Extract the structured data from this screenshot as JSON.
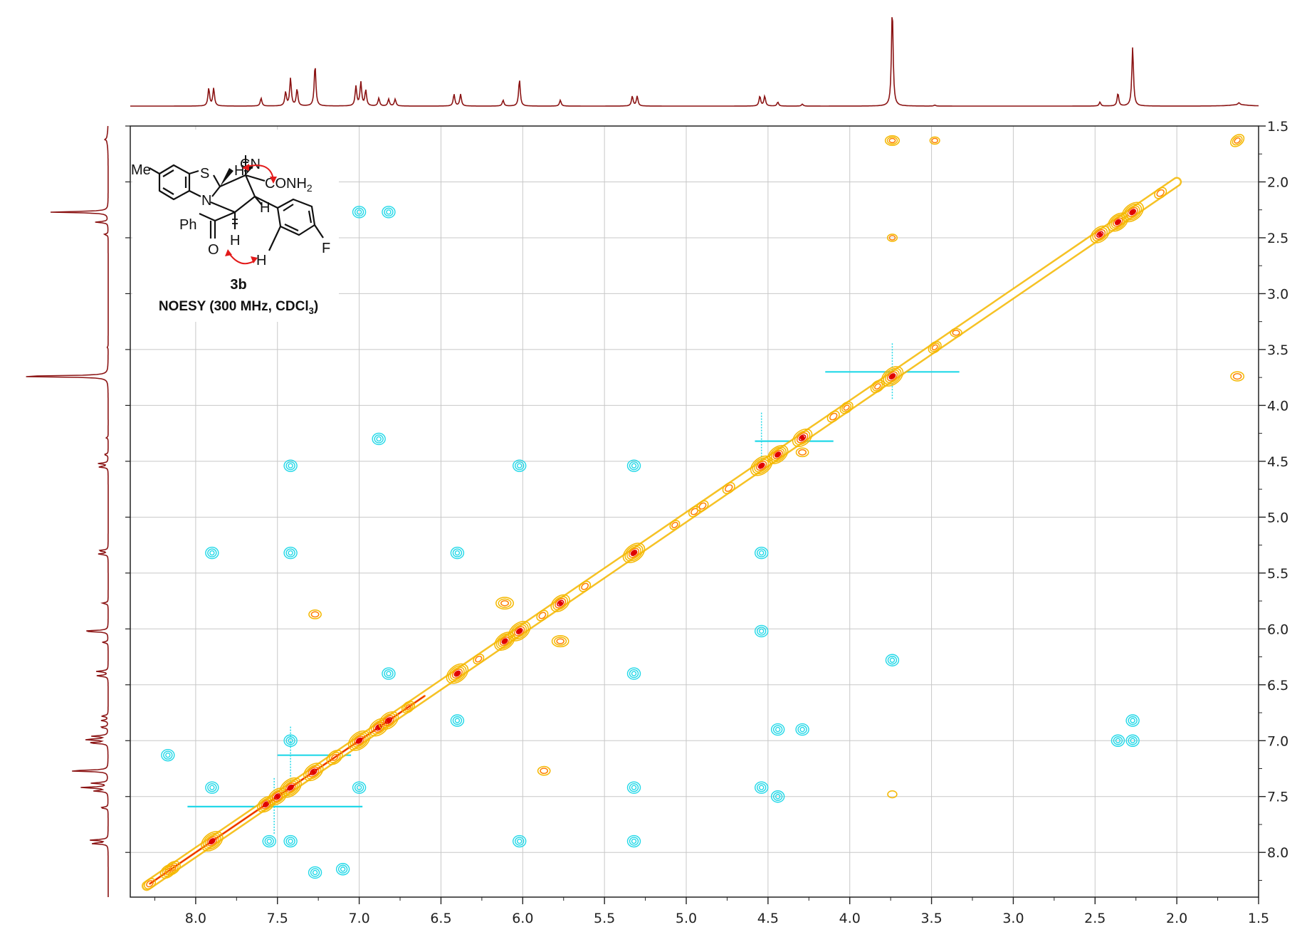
{
  "chart_data": {
    "type": "heatmap",
    "experiment": "NOESY (300 MHz, CDCl3)",
    "xaxis": {
      "unit": "ppm",
      "range": [
        8.4,
        1.5
      ],
      "ticks": [
        "8.0",
        "7.5",
        "7.0",
        "6.5",
        "6.0",
        "5.5",
        "5.0",
        "4.5",
        "4.0",
        "3.5",
        "3.0",
        "2.5",
        "2.0",
        "1.5"
      ]
    },
    "yaxis": {
      "unit": "ppm",
      "range": [
        1.5,
        8.4
      ],
      "ticks": [
        "1.5",
        "2.0",
        "2.5",
        "3.0",
        "3.5",
        "4.0",
        "4.5",
        "5.0",
        "5.5",
        "6.0",
        "6.5",
        "7.0",
        "7.5",
        "8.0"
      ]
    },
    "grid": true,
    "colors": {
      "positive_low": "#f5b800",
      "positive_mid": "#ff7f00",
      "positive_high": "#e00000",
      "negative": "#22d8e8",
      "projection": "#8b1414",
      "grid": "#c8c8c8",
      "arrow": "#e21a1a"
    },
    "projection_peaks": [
      {
        "ppm": 7.92,
        "height": 0.18
      },
      {
        "ppm": 7.89,
        "height": 0.18
      },
      {
        "ppm": 7.6,
        "height": 0.08
      },
      {
        "ppm": 7.45,
        "height": 0.14
      },
      {
        "ppm": 7.42,
        "height": 0.28
      },
      {
        "ppm": 7.38,
        "height": 0.17
      },
      {
        "ppm": 7.27,
        "height": 0.42
      },
      {
        "ppm": 7.02,
        "height": 0.2
      },
      {
        "ppm": 6.99,
        "height": 0.24
      },
      {
        "ppm": 6.96,
        "height": 0.16
      },
      {
        "ppm": 6.88,
        "height": 0.08
      },
      {
        "ppm": 6.82,
        "height": 0.07
      },
      {
        "ppm": 6.78,
        "height": 0.07
      },
      {
        "ppm": 6.42,
        "height": 0.12
      },
      {
        "ppm": 6.38,
        "height": 0.12
      },
      {
        "ppm": 6.12,
        "height": 0.06
      },
      {
        "ppm": 6.02,
        "height": 0.27
      },
      {
        "ppm": 5.77,
        "height": 0.06
      },
      {
        "ppm": 5.33,
        "height": 0.1
      },
      {
        "ppm": 5.3,
        "height": 0.1
      },
      {
        "ppm": 4.55,
        "height": 0.1
      },
      {
        "ppm": 4.52,
        "height": 0.1
      },
      {
        "ppm": 4.44,
        "height": 0.04
      },
      {
        "ppm": 4.29,
        "height": 0.02
      },
      {
        "ppm": 3.74,
        "height": 1.0
      },
      {
        "ppm": 3.48,
        "height": 0.01
      },
      {
        "ppm": 2.47,
        "height": 0.04
      },
      {
        "ppm": 2.36,
        "height": 0.13
      },
      {
        "ppm": 2.27,
        "height": 0.6
      },
      {
        "ppm": 1.62,
        "height": 0.02
      }
    ],
    "diagonal_peaks": [
      {
        "ppm": 8.28,
        "i": 0.3
      },
      {
        "ppm": 8.17,
        "i": 0.55
      },
      {
        "ppm": 8.14,
        "i": 0.55
      },
      {
        "ppm": 7.9,
        "i": 1.0
      },
      {
        "ppm": 7.57,
        "i": 0.7
      },
      {
        "ppm": 7.5,
        "i": 0.8
      },
      {
        "ppm": 7.42,
        "i": 1.0
      },
      {
        "ppm": 7.28,
        "i": 0.85
      },
      {
        "ppm": 7.15,
        "i": 0.6
      },
      {
        "ppm": 7.0,
        "i": 1.0
      },
      {
        "ppm": 6.88,
        "i": 0.85
      },
      {
        "ppm": 6.82,
        "i": 0.85
      },
      {
        "ppm": 6.7,
        "i": 0.4
      },
      {
        "ppm": 6.4,
        "i": 1.0
      },
      {
        "ppm": 6.27,
        "i": 0.25
      },
      {
        "ppm": 6.11,
        "i": 0.9
      },
      {
        "ppm": 6.02,
        "i": 1.0
      },
      {
        "ppm": 5.88,
        "i": 0.3
      },
      {
        "ppm": 5.77,
        "i": 0.8
      },
      {
        "ppm": 5.62,
        "i": 0.3
      },
      {
        "ppm": 5.32,
        "i": 1.0
      },
      {
        "ppm": 5.07,
        "i": 0.2
      },
      {
        "ppm": 4.95,
        "i": 0.3
      },
      {
        "ppm": 4.9,
        "i": 0.3
      },
      {
        "ppm": 4.74,
        "i": 0.35
      },
      {
        "ppm": 4.54,
        "i": 1.0
      },
      {
        "ppm": 4.44,
        "i": 0.9
      },
      {
        "ppm": 4.29,
        "i": 0.85
      },
      {
        "ppm": 4.1,
        "i": 0.35
      },
      {
        "ppm": 4.02,
        "i": 0.4
      },
      {
        "ppm": 3.83,
        "i": 0.45
      },
      {
        "ppm": 3.74,
        "i": 1.0
      },
      {
        "ppm": 3.48,
        "i": 0.4
      },
      {
        "ppm": 2.47,
        "i": 0.8
      },
      {
        "ppm": 2.36,
        "i": 0.9
      },
      {
        "ppm": 2.27,
        "i": 1.0
      },
      {
        "ppm": 2.1,
        "i": 0.35
      },
      {
        "ppm": 1.63,
        "i": 0.45
      }
    ],
    "positive_crosspeaks": [
      {
        "x": 3.74,
        "y": 1.63,
        "i": 0.4
      },
      {
        "x": 3.48,
        "y": 1.63,
        "i": 0.15
      },
      {
        "x": 1.63,
        "y": 3.74,
        "i": 0.35
      },
      {
        "x": 3.35,
        "y": 3.35,
        "i": 0.25
      },
      {
        "x": 3.74,
        "y": 2.5,
        "i": 0.15
      },
      {
        "x": 6.11,
        "y": 5.77,
        "i": 0.6
      },
      {
        "x": 5.77,
        "y": 6.11,
        "i": 0.55
      },
      {
        "x": 7.27,
        "y": 5.87,
        "i": 0.3
      },
      {
        "x": 5.87,
        "y": 7.27,
        "i": 0.3
      },
      {
        "x": 4.29,
        "y": 4.42,
        "i": 0.3
      },
      {
        "x": 3.74,
        "y": 7.48,
        "i": 0.12
      }
    ],
    "negative_crosspeaks": [
      {
        "x": 7.0,
        "y": 2.27
      },
      {
        "x": 6.82,
        "y": 2.27
      },
      {
        "x": 2.27,
        "y": 6.82
      },
      {
        "x": 2.27,
        "y": 7.0
      },
      {
        "x": 2.36,
        "y": 7.0
      },
      {
        "x": 7.42,
        "y": 4.54
      },
      {
        "x": 6.02,
        "y": 4.54
      },
      {
        "x": 5.32,
        "y": 4.54
      },
      {
        "x": 4.54,
        "y": 5.32
      },
      {
        "x": 7.9,
        "y": 5.32
      },
      {
        "x": 7.42,
        "y": 5.32
      },
      {
        "x": 6.4,
        "y": 5.32
      },
      {
        "x": 4.54,
        "y": 6.02
      },
      {
        "x": 5.32,
        "y": 6.4
      },
      {
        "x": 3.74,
        "y": 6.28
      },
      {
        "x": 6.82,
        "y": 6.4
      },
      {
        "x": 6.4,
        "y": 6.82
      },
      {
        "x": 7.9,
        "y": 7.42
      },
      {
        "x": 5.32,
        "y": 7.42
      },
      {
        "x": 4.54,
        "y": 7.42
      },
      {
        "x": 7.0,
        "y": 7.42
      },
      {
        "x": 7.42,
        "y": 7.0
      },
      {
        "x": 6.02,
        "y": 7.9
      },
      {
        "x": 5.32,
        "y": 7.9
      },
      {
        "x": 7.42,
        "y": 7.9
      },
      {
        "x": 7.55,
        "y": 7.9
      },
      {
        "x": 6.88,
        "y": 4.3
      },
      {
        "x": 4.44,
        "y": 6.9
      },
      {
        "x": 4.29,
        "y": 6.9
      },
      {
        "x": 8.17,
        "y": 7.13
      },
      {
        "x": 7.27,
        "y": 8.18
      },
      {
        "x": 7.1,
        "y": 8.15
      },
      {
        "x": 4.44,
        "y": 7.5
      }
    ],
    "t1_noise": [
      {
        "x": 7.52,
        "y": 7.59,
        "x_from": 8.05,
        "x_to": 6.98
      },
      {
        "x": 3.74,
        "y": 3.7,
        "x_from": 4.15,
        "x_to": 3.33
      },
      {
        "x": 4.54,
        "y": 4.32,
        "x_from": 4.58,
        "x_to": 4.1
      },
      {
        "x": 7.42,
        "y": 7.13,
        "x_from": 7.5,
        "x_to": 7.05
      }
    ],
    "inset": {
      "compound_label": "3b",
      "caption": "NOESY (300 MHz, CDCl",
      "caption_sub": "3",
      "caption_end": ")",
      "atoms": {
        "methyl": "Me",
        "sulfur": "S",
        "nitrogen": "N",
        "phenyl": "Ph",
        "oxygen": "O",
        "fluorine": "F",
        "hydrogen": "H",
        "nitrile": "CN",
        "amide": "CONH",
        "amide_sub": "2"
      }
    }
  }
}
